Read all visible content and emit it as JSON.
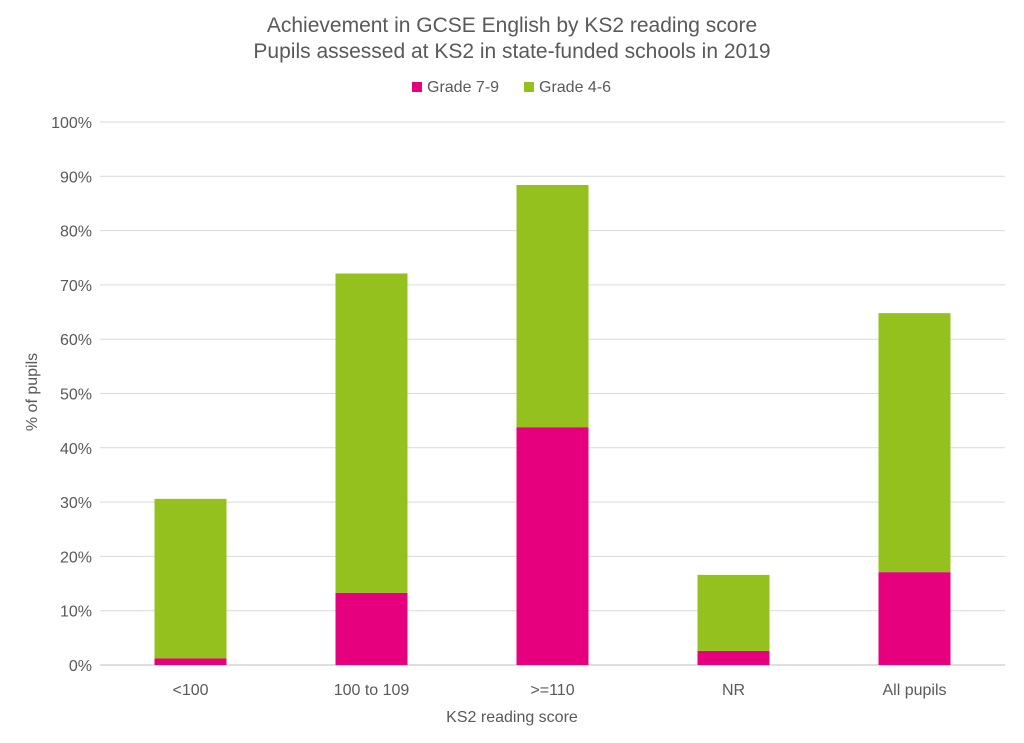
{
  "chart_data": {
    "type": "bar",
    "stacked": true,
    "title": "Achievement in GCSE English by KS2 reading score",
    "subtitle": "Pupils assessed at KS2 in state-funded schools in 2019",
    "xlabel": "KS2 reading score",
    "ylabel": "% of pupils",
    "categories": [
      "<100",
      "100 to 109",
      ">=110",
      "NR",
      "All pupils"
    ],
    "series": [
      {
        "name": "Grade 7-9",
        "color": "#e6007e",
        "values": [
          1.2,
          13.3,
          43.8,
          2.6,
          17.1
        ]
      },
      {
        "name": "Grade 4-6",
        "color": "#95c11f",
        "values": [
          29.4,
          58.8,
          44.6,
          14.0,
          47.7
        ]
      }
    ],
    "ylim": [
      0,
      100
    ],
    "yticks": [
      "0%",
      "10%",
      "20%",
      "30%",
      "40%",
      "50%",
      "60%",
      "70%",
      "80%",
      "90%",
      "100%"
    ],
    "grid": true,
    "legend_position": "top-center"
  }
}
